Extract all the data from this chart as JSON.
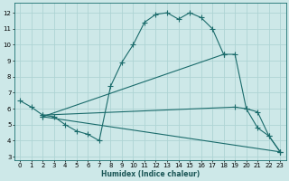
{
  "xlabel": "Humidex (Indice chaleur)",
  "bg_color": "#cde8e8",
  "line_color": "#1a6b6b",
  "grid_color": "#aed4d4",
  "xlim": [
    -0.5,
    23.5
  ],
  "ylim": [
    2.8,
    12.6
  ],
  "yticks": [
    3,
    4,
    5,
    6,
    7,
    8,
    9,
    10,
    11,
    12
  ],
  "xticks": [
    0,
    1,
    2,
    3,
    4,
    5,
    6,
    7,
    8,
    9,
    10,
    11,
    12,
    13,
    14,
    15,
    16,
    17,
    18,
    19,
    20,
    21,
    22,
    23
  ],
  "curves": [
    {
      "x": [
        0,
        1,
        2,
        3,
        4,
        5,
        6,
        7,
        8,
        9,
        10,
        11,
        12,
        13,
        14,
        15,
        16,
        17,
        18
      ],
      "y": [
        6.5,
        6.1,
        5.6,
        5.5,
        5.0,
        4.6,
        4.4,
        4.0,
        7.4,
        8.9,
        10.0,
        11.4,
        11.9,
        12.0,
        11.6,
        12.0,
        11.7,
        11.0,
        9.4
      ]
    },
    {
      "x": [
        2,
        19,
        20,
        21,
        22,
        23
      ],
      "y": [
        5.6,
        6.1,
        6.0,
        5.8,
        4.3,
        3.3
      ]
    },
    {
      "x": [
        2,
        23
      ],
      "y": [
        5.5,
        3.3
      ]
    },
    {
      "x": [
        2,
        18
      ],
      "y": [
        5.5,
        9.4
      ]
    },
    {
      "x": [
        18,
        19,
        20,
        21,
        22,
        23
      ],
      "y": [
        9.4,
        9.4,
        6.0,
        4.8,
        4.3,
        3.3
      ]
    }
  ]
}
